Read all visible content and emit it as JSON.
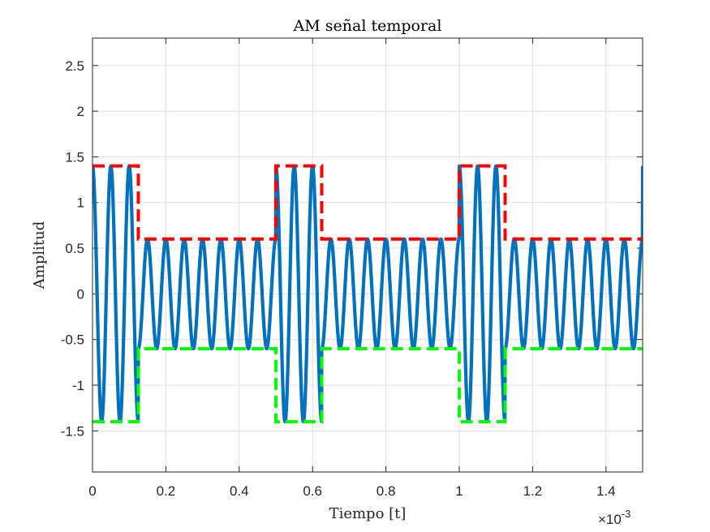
{
  "chart_data": {
    "type": "line",
    "title": "AM señal temporal",
    "xlabel": "Tiempo [t]",
    "ylabel": "Amplitud",
    "x_exponent": {
      "base": "×10",
      "power": "-3"
    },
    "xlim": [
      0,
      0.0015
    ],
    "ylim": [
      -1.95,
      2.8
    ],
    "xticks": [
      0,
      0.0002,
      0.0004,
      0.0006,
      0.0008,
      0.001,
      0.0012,
      0.0014
    ],
    "xtick_labels": [
      "0",
      "0.2",
      "0.4",
      "0.6",
      "0.8",
      "1",
      "1.2",
      "1.4"
    ],
    "yticks": [
      -1.5,
      -1,
      -0.5,
      0,
      0.5,
      1,
      1.5,
      2,
      2.5
    ],
    "ytick_labels": [
      "-1.5",
      "-1",
      "-0.5",
      "0",
      "0.5",
      "1",
      "1.5",
      "2",
      "2.5"
    ],
    "grid": true,
    "carrier_frequency_hz": 20000,
    "message_period_s": 0.0005,
    "high_duration_s": 0.000125,
    "series": [
      {
        "color": "#0072BD",
        "style": "solid",
        "description": "AM signal: amplitude 1.4 during high segments, 0.6 otherwise, cosine carrier",
        "high_amplitude": 1.4,
        "low_amplitude": 0.6
      },
      {
        "color": "#FF0000",
        "style": "dashed",
        "envelope": "upper",
        "x": [
          0,
          0.000125,
          0.000125,
          0.0005,
          0.0005,
          0.000625,
          0.000625,
          0.001,
          0.001,
          0.001125,
          0.001125,
          0.0015
        ],
        "y": [
          1.4,
          1.4,
          0.6,
          0.6,
          1.4,
          1.4,
          0.6,
          0.6,
          1.4,
          1.4,
          0.6,
          0.6
        ]
      },
      {
        "color": "#00FF00",
        "style": "dashed",
        "envelope": "lower",
        "x": [
          0,
          0.000125,
          0.000125,
          0.0005,
          0.0005,
          0.000625,
          0.000625,
          0.001,
          0.001,
          0.001125,
          0.001125,
          0.0015
        ],
        "y": [
          -1.4,
          -1.4,
          -0.6,
          -0.6,
          -1.4,
          -1.4,
          -0.6,
          -0.6,
          -1.4,
          -1.4,
          -0.6,
          -0.6
        ]
      }
    ]
  }
}
